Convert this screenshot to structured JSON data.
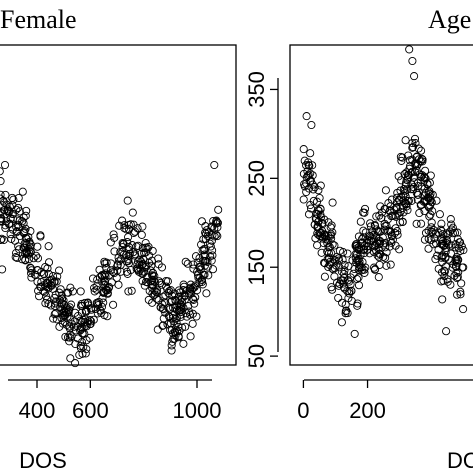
{
  "chart_data": [
    {
      "type": "scatter",
      "title": "Female",
      "xlabel": "DOS",
      "ylabel": "",
      "xlim": [
        250,
        1120
      ],
      "ylim": [
        40,
        400
      ],
      "xticks": [
        400,
        600,
        1000
      ],
      "xtick_labels": [
        "400",
        "600",
        "1000"
      ],
      "grid": false,
      "marker": "open-circle",
      "color": "#000000",
      "trend_points": [
        {
          "x": 260,
          "y": 210
        },
        {
          "x": 300,
          "y": 205
        },
        {
          "x": 340,
          "y": 185
        },
        {
          "x": 380,
          "y": 160
        },
        {
          "x": 420,
          "y": 140
        },
        {
          "x": 460,
          "y": 118
        },
        {
          "x": 500,
          "y": 98
        },
        {
          "x": 540,
          "y": 85
        },
        {
          "x": 570,
          "y": 80
        },
        {
          "x": 600,
          "y": 92
        },
        {
          "x": 640,
          "y": 120
        },
        {
          "x": 680,
          "y": 150
        },
        {
          "x": 720,
          "y": 170
        },
        {
          "x": 760,
          "y": 175
        },
        {
          "x": 800,
          "y": 160
        },
        {
          "x": 840,
          "y": 130
        },
        {
          "x": 880,
          "y": 105
        },
        {
          "x": 920,
          "y": 95
        },
        {
          "x": 960,
          "y": 108
        },
        {
          "x": 1000,
          "y": 135
        },
        {
          "x": 1040,
          "y": 170
        },
        {
          "x": 1080,
          "y": 205
        }
      ],
      "spread": 32,
      "n_points": 620,
      "outliers": [
        {
          "x": 280,
          "y": 265
        },
        {
          "x": 1065,
          "y": 265
        },
        {
          "x": 740,
          "y": 225
        },
        {
          "x": 585,
          "y": 58
        },
        {
          "x": 905,
          "y": 62
        }
      ]
    },
    {
      "type": "scatter",
      "title": "Age",
      "xlabel": "DOS",
      "ylabel": "",
      "xlim": [
        -20,
        560
      ],
      "ylim": [
        40,
        400
      ],
      "xticks": [
        0,
        200
      ],
      "xtick_labels": [
        "0",
        "200"
      ],
      "yticks": [
        50,
        150,
        250,
        350
      ],
      "ytick_labels": [
        "50",
        "150",
        "250",
        "350"
      ],
      "grid": false,
      "marker": "open-circle",
      "color": "#000000",
      "trend_points": [
        {
          "x": 0,
          "y": 265
        },
        {
          "x": 20,
          "y": 245
        },
        {
          "x": 40,
          "y": 215
        },
        {
          "x": 60,
          "y": 190
        },
        {
          "x": 80,
          "y": 165
        },
        {
          "x": 100,
          "y": 150
        },
        {
          "x": 120,
          "y": 135
        },
        {
          "x": 140,
          "y": 125
        },
        {
          "x": 160,
          "y": 140
        },
        {
          "x": 180,
          "y": 160
        },
        {
          "x": 200,
          "y": 175
        },
        {
          "x": 220,
          "y": 182
        },
        {
          "x": 240,
          "y": 180
        },
        {
          "x": 260,
          "y": 185
        },
        {
          "x": 280,
          "y": 195
        },
        {
          "x": 300,
          "y": 215
        },
        {
          "x": 320,
          "y": 245
        },
        {
          "x": 340,
          "y": 265
        },
        {
          "x": 360,
          "y": 255
        },
        {
          "x": 380,
          "y": 230
        },
        {
          "x": 400,
          "y": 200
        },
        {
          "x": 420,
          "y": 175
        },
        {
          "x": 440,
          "y": 165
        },
        {
          "x": 460,
          "y": 175
        },
        {
          "x": 480,
          "y": 160
        },
        {
          "x": 500,
          "y": 145
        }
      ],
      "spread": 38,
      "n_points": 520,
      "outliers": [
        {
          "x": 330,
          "y": 395
        },
        {
          "x": 340,
          "y": 382
        },
        {
          "x": 345,
          "y": 365
        },
        {
          "x": 10,
          "y": 320
        },
        {
          "x": 25,
          "y": 310
        },
        {
          "x": 120,
          "y": 88
        },
        {
          "x": 160,
          "y": 75
        },
        {
          "x": 445,
          "y": 78
        }
      ]
    }
  ]
}
